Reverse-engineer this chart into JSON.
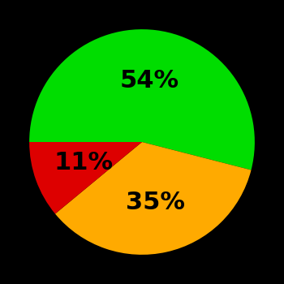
{
  "slices": [
    54,
    35,
    11
  ],
  "colors": [
    "#00dd00",
    "#ffaa00",
    "#dd0000"
  ],
  "labels": [
    "54%",
    "35%",
    "11%"
  ],
  "background_color": "#000000",
  "text_color": "#000000",
  "label_fontsize": 22,
  "label_fontweight": "bold",
  "startangle": 180
}
